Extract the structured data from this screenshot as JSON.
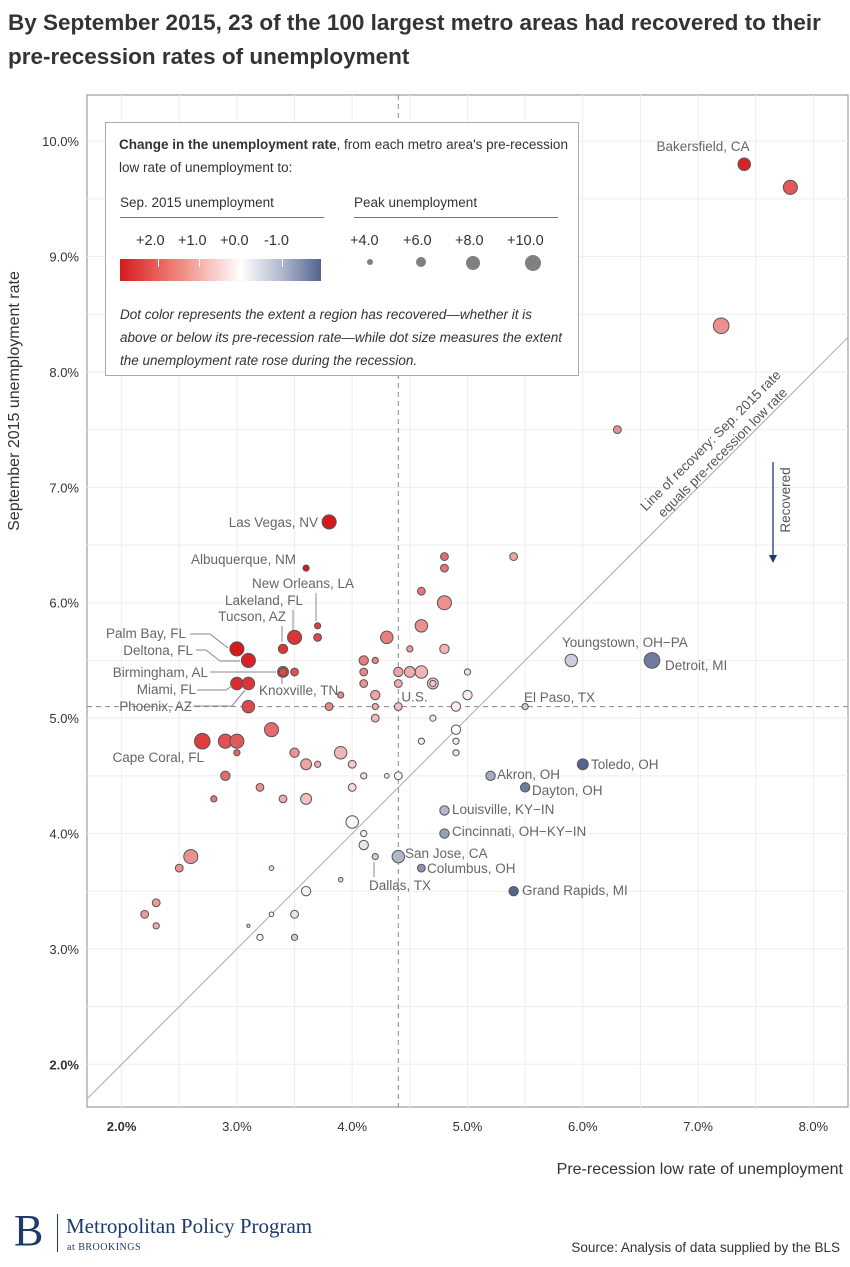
{
  "title": "By September 2015, 23 of the 100 largest metro areas had recovered to their pre-recession rates of unemployment",
  "legend": {
    "heading_bold": "Change in the unemployment rate",
    "heading_rest": ", from each metro area's pre-recession low rate of unemployment to:",
    "color_title": "Sep. 2015 unemployment",
    "color_ticks": [
      "+2.0",
      "+1.0",
      "+0.0",
      "-1.0"
    ],
    "size_title": "Peak unemployment",
    "size_ticks": [
      "+4.0",
      "+6.0",
      "+8.0",
      "+10.0"
    ],
    "size_values": [
      4,
      6,
      8,
      10
    ],
    "note": "Dot color represents the extent a region has recovered—whether it is above or below its pre-recession rate—while dot size measures the extent the unemployment rate rose during the recession."
  },
  "footer": {
    "logo_letter": "B",
    "program": "Metropolitan Policy Program",
    "at": "at BROOKINGS",
    "source": "Source: Analysis of data supplied by the BLS"
  },
  "chart_data": {
    "type": "scatter",
    "xlabel": "Pre-recession low rate of unemployment",
    "ylabel": "September 2015 unemployment rate",
    "xlim": [
      1.7,
      8.3
    ],
    "ylim": [
      1.63,
      10.4
    ],
    "x_ticks": [
      "2.0%",
      "3.0%",
      "4.0%",
      "5.0%",
      "6.0%",
      "7.0%",
      "8.0%"
    ],
    "x_tick_values": [
      2,
      3,
      4,
      5,
      6,
      7,
      8
    ],
    "y_ticks": [
      "2.0%",
      "3.0%",
      "4.0%",
      "5.0%",
      "6.0%",
      "7.0%",
      "8.0%",
      "9.0%",
      "10.0%"
    ],
    "y_tick_values": [
      2,
      3,
      4,
      5,
      6,
      7,
      8,
      9,
      10
    ],
    "grid": true,
    "colors": {
      "high": "#d7191c",
      "zero": "#ffffff",
      "low": "#55648f"
    },
    "reference": {
      "us_x": 4.4,
      "us_y": 5.1,
      "us_label": "U.S.",
      "recovery_line_label_1": "Line of recovery: Sep. 2015 rate",
      "recovery_line_label_2": "equals pre-recession low rate",
      "recovered_label": "Recovered"
    },
    "fields": [
      "pre_recession_low",
      "sep_2015",
      "peak_rise",
      "label"
    ],
    "points": [
      [
        7.4,
        9.8,
        8,
        "Bakersfield, CA"
      ],
      [
        7.8,
        9.6,
        9,
        ""
      ],
      [
        7.2,
        8.4,
        10,
        ""
      ],
      [
        6.3,
        7.5,
        5,
        ""
      ],
      [
        3.8,
        6.7,
        9,
        "Las Vegas, NV"
      ],
      [
        3.6,
        6.3,
        4,
        "Albuquerque, NM"
      ],
      [
        3.7,
        5.8,
        4,
        "New Orleans, LA"
      ],
      [
        3.5,
        5.7,
        9,
        "Lakeland, FL"
      ],
      [
        3.4,
        5.6,
        6,
        "Tucson, AZ"
      ],
      [
        3.0,
        5.6,
        9,
        "Palm Bay, FL"
      ],
      [
        3.1,
        5.5,
        9,
        "Deltona, FL"
      ],
      [
        3.4,
        5.4,
        7,
        "Birmingham, AL"
      ],
      [
        3.4,
        5.4,
        5,
        "Knoxville, TN"
      ],
      [
        3.5,
        5.4,
        5,
        ""
      ],
      [
        3.0,
        5.3,
        8,
        "Miami, FL"
      ],
      [
        3.1,
        5.3,
        8,
        "Phoenix, AZ"
      ],
      [
        3.1,
        5.1,
        8,
        ""
      ],
      [
        3.9,
        5.2,
        4,
        ""
      ],
      [
        3.8,
        5.1,
        5,
        ""
      ],
      [
        3.7,
        5.7,
        5,
        ""
      ],
      [
        2.7,
        4.8,
        10,
        "Cape Coral, FL"
      ],
      [
        2.9,
        4.8,
        9,
        ""
      ],
      [
        3.0,
        4.8,
        9,
        ""
      ],
      [
        3.0,
        4.7,
        4,
        ""
      ],
      [
        3.3,
        4.9,
        9,
        ""
      ],
      [
        2.9,
        4.5,
        6,
        ""
      ],
      [
        2.8,
        4.3,
        4,
        ""
      ],
      [
        3.2,
        4.4,
        5,
        ""
      ],
      [
        3.4,
        4.3,
        5,
        ""
      ],
      [
        3.6,
        4.3,
        7,
        ""
      ],
      [
        3.5,
        4.7,
        6,
        ""
      ],
      [
        3.6,
        4.6,
        7,
        ""
      ],
      [
        3.7,
        4.6,
        4,
        ""
      ],
      [
        3.9,
        4.7,
        8,
        ""
      ],
      [
        4.0,
        4.6,
        5,
        ""
      ],
      [
        4.0,
        4.4,
        5,
        ""
      ],
      [
        4.1,
        4.5,
        4,
        ""
      ],
      [
        4.3,
        4.5,
        3,
        ""
      ],
      [
        4.4,
        4.5,
        5,
        ""
      ],
      [
        4.0,
        4.1,
        8,
        ""
      ],
      [
        4.1,
        4.0,
        4,
        ""
      ],
      [
        4.1,
        3.9,
        6,
        ""
      ],
      [
        4.2,
        3.8,
        4,
        "Dallas, TX"
      ],
      [
        4.4,
        3.8,
        8,
        "San Jose, CA"
      ],
      [
        4.6,
        3.7,
        5,
        "Columbus, OH"
      ],
      [
        3.9,
        3.6,
        3,
        ""
      ],
      [
        3.6,
        3.5,
        6,
        ""
      ],
      [
        3.5,
        3.3,
        5,
        ""
      ],
      [
        3.5,
        3.1,
        4,
        ""
      ],
      [
        3.3,
        3.3,
        3,
        ""
      ],
      [
        3.2,
        3.1,
        4,
        ""
      ],
      [
        3.1,
        3.2,
        2,
        ""
      ],
      [
        3.3,
        3.7,
        3,
        ""
      ],
      [
        2.6,
        3.8,
        9,
        ""
      ],
      [
        2.5,
        3.7,
        5,
        ""
      ],
      [
        2.3,
        3.4,
        5,
        ""
      ],
      [
        2.2,
        3.3,
        5,
        ""
      ],
      [
        2.3,
        3.2,
        4,
        ""
      ],
      [
        5.2,
        4.5,
        6,
        "Akron, OH"
      ],
      [
        5.5,
        4.4,
        6,
        "Dayton, OH"
      ],
      [
        6.0,
        4.6,
        7,
        "Toledo, OH"
      ],
      [
        4.8,
        4.2,
        6,
        "Louisville, KY−IN"
      ],
      [
        4.8,
        4.0,
        6,
        "Cincinnati, OH−KY−IN"
      ],
      [
        5.4,
        3.5,
        6,
        "Grand Rapids, MI"
      ],
      [
        5.9,
        5.5,
        8,
        "Youngstown, OH−PA"
      ],
      [
        6.6,
        5.5,
        10,
        "Detroit, MI"
      ],
      [
        5.5,
        5.1,
        4,
        "El Paso, TX"
      ],
      [
        4.8,
        6.4,
        5,
        ""
      ],
      [
        4.8,
        6.3,
        5,
        ""
      ],
      [
        5.4,
        6.4,
        5,
        ""
      ],
      [
        4.6,
        6.1,
        5,
        ""
      ],
      [
        4.8,
        6.0,
        9,
        ""
      ],
      [
        4.6,
        5.8,
        8,
        ""
      ],
      [
        4.3,
        5.7,
        8,
        ""
      ],
      [
        4.5,
        5.6,
        4,
        ""
      ],
      [
        4.8,
        5.6,
        6,
        ""
      ],
      [
        4.2,
        5.5,
        4,
        ""
      ],
      [
        4.1,
        5.5,
        6,
        ""
      ],
      [
        4.1,
        5.4,
        5,
        ""
      ],
      [
        4.1,
        5.3,
        5,
        ""
      ],
      [
        4.4,
        5.4,
        6,
        ""
      ],
      [
        4.5,
        5.4,
        7,
        ""
      ],
      [
        4.6,
        5.4,
        8,
        ""
      ],
      [
        5.0,
        5.4,
        4,
        ""
      ],
      [
        4.7,
        5.3,
        7,
        ""
      ],
      [
        4.7,
        5.3,
        4,
        ""
      ],
      [
        4.4,
        5.3,
        5,
        ""
      ],
      [
        4.2,
        5.2,
        6,
        ""
      ],
      [
        5.0,
        5.2,
        6,
        ""
      ],
      [
        4.2,
        5.1,
        4,
        ""
      ],
      [
        4.4,
        5.1,
        5,
        ""
      ],
      [
        4.9,
        5.1,
        6,
        ""
      ],
      [
        4.7,
        5.0,
        4,
        ""
      ],
      [
        4.2,
        5.0,
        5,
        ""
      ],
      [
        4.9,
        4.9,
        6,
        ""
      ],
      [
        4.6,
        4.8,
        4,
        ""
      ],
      [
        4.9,
        4.8,
        4,
        ""
      ],
      [
        4.9,
        4.7,
        4,
        ""
      ]
    ]
  }
}
